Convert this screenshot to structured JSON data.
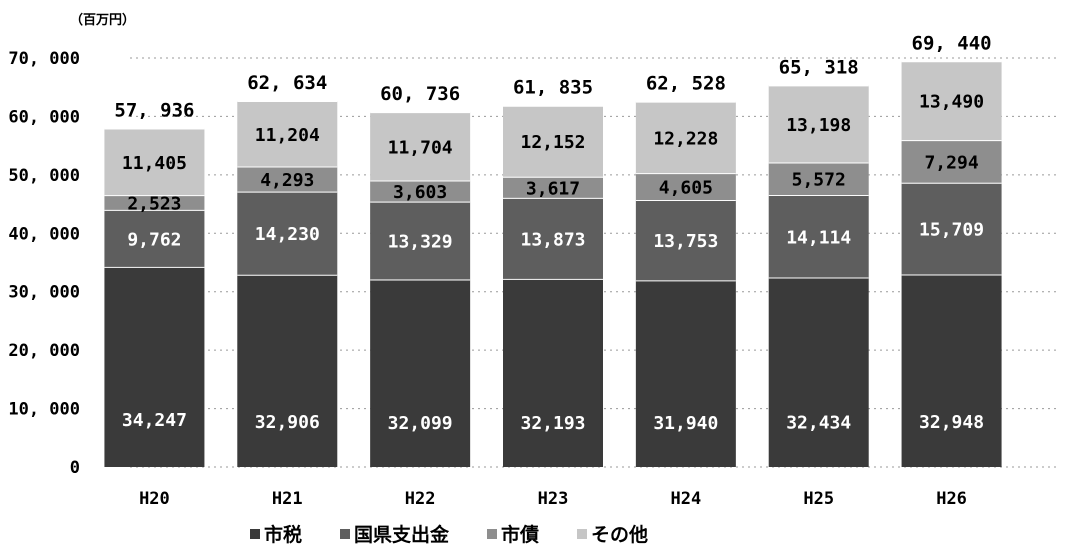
{
  "chart_data": {
    "type": "bar",
    "stacked": true,
    "unit_label": "（百万円）",
    "categories": [
      "H20",
      "H21",
      "H22",
      "H23",
      "H24",
      "H25",
      "H26"
    ],
    "series": [
      {
        "name": "市税",
        "color": "#3a3a3a",
        "values": [
          34247,
          32906,
          32099,
          32193,
          31940,
          32434,
          32948
        ],
        "labels": [
          "34,247",
          "32,906",
          "32,099",
          "32,193",
          "31,940",
          "32,434",
          "32,948"
        ]
      },
      {
        "name": "国県支出金",
        "color": "#5e5e5e",
        "values": [
          9762,
          14230,
          13329,
          13873,
          13753,
          14114,
          15709
        ],
        "labels": [
          "9,762",
          "14,230",
          "13,329",
          "13,873",
          "13,753",
          "14,114",
          "15,709"
        ]
      },
      {
        "name": "市債",
        "color": "#8e8e8e",
        "values": [
          2523,
          4293,
          3603,
          3617,
          4605,
          5572,
          7294
        ],
        "labels": [
          "2,523",
          "4,293",
          "3,603",
          "3,617",
          "4,605",
          "5,572",
          "7,294"
        ]
      },
      {
        "name": "その他",
        "color": "#c6c6c6",
        "values": [
          11405,
          11204,
          11704,
          12152,
          12228,
          13198,
          13490
        ],
        "labels": [
          "11,405",
          "11,204",
          "11,704",
          "12,152",
          "12,228",
          "13,198",
          "13,490"
        ]
      }
    ],
    "totals": [
      57936,
      62634,
      60736,
      61835,
      62528,
      65318,
      69440
    ],
    "total_labels": [
      "57, 936",
      "62, 634",
      "60, 736",
      "61, 835",
      "62, 528",
      "65, 318",
      "69, 440"
    ],
    "yticks": [
      0,
      10000,
      20000,
      30000,
      40000,
      50000,
      60000,
      70000
    ],
    "ytick_labels": [
      "0",
      "10, 000",
      "20, 000",
      "30, 000",
      "40, 000",
      "50, 000",
      "60, 000",
      "70, 000"
    ],
    "ylim": [
      0,
      70000
    ],
    "grid": true,
    "legend": "bottom",
    "title": "",
    "xlabel": "",
    "ylabel": ""
  }
}
